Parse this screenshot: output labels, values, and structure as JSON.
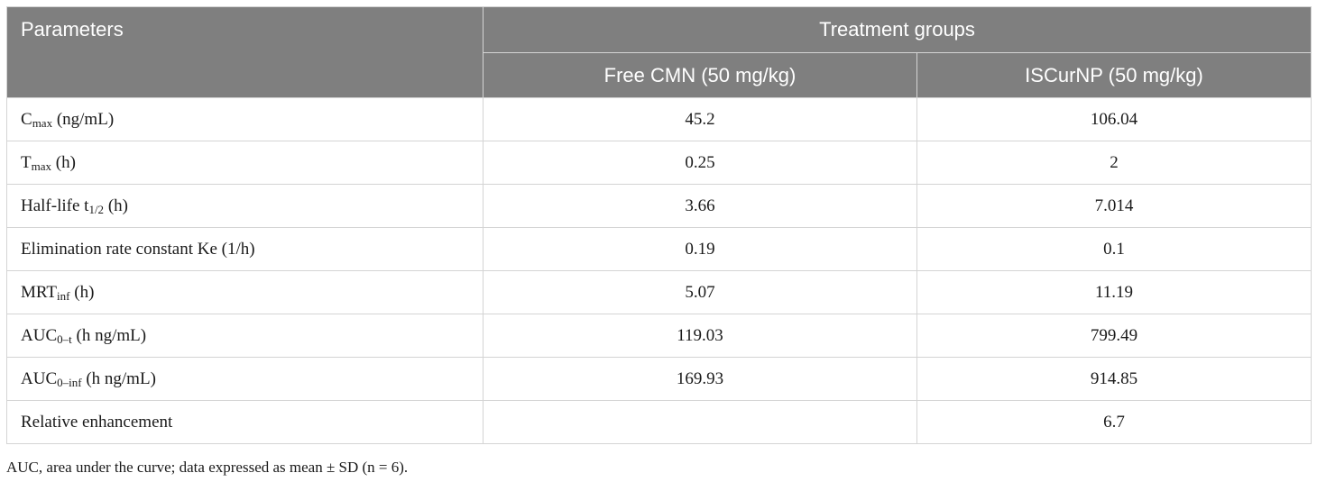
{
  "header": {
    "parameters": "Parameters",
    "treatment_groups": "Treatment groups",
    "col_free": "Free CMN (50 mg/kg)",
    "col_iscur": "ISCurNP (50 mg/kg)"
  },
  "rows": [
    {
      "base": "C",
      "sub": "max",
      "rest": " (ng/mL)",
      "free": "45.2",
      "iscur": "106.04"
    },
    {
      "base": "T",
      "sub": "max",
      "rest": " (h)",
      "free": "0.25",
      "iscur": "2"
    },
    {
      "base": "Half-life t",
      "sub": "1/2",
      "rest": " (h)",
      "free": "3.66",
      "iscur": "7.014"
    },
    {
      "base": "Elimination rate constant Ke (1/h)",
      "sub": "",
      "rest": "",
      "free": "0.19",
      "iscur": "0.1"
    },
    {
      "base": "MRT",
      "sub": "inf",
      "rest": " (h)",
      "free": "5.07",
      "iscur": "11.19"
    },
    {
      "base": "AUC",
      "sub": "0–t",
      "rest": " (h ng/mL)",
      "free": "119.03",
      "iscur": "799.49"
    },
    {
      "base": "AUC",
      "sub": "0–inf",
      "rest": " (h ng/mL)",
      "free": "169.93",
      "iscur": "914.85"
    },
    {
      "base": "Relative enhancement",
      "sub": "",
      "rest": "",
      "free": "",
      "iscur": "6.7"
    }
  ],
  "footnote": "AUC, area under the curve; data expressed as mean ± SD (n = 6)."
}
